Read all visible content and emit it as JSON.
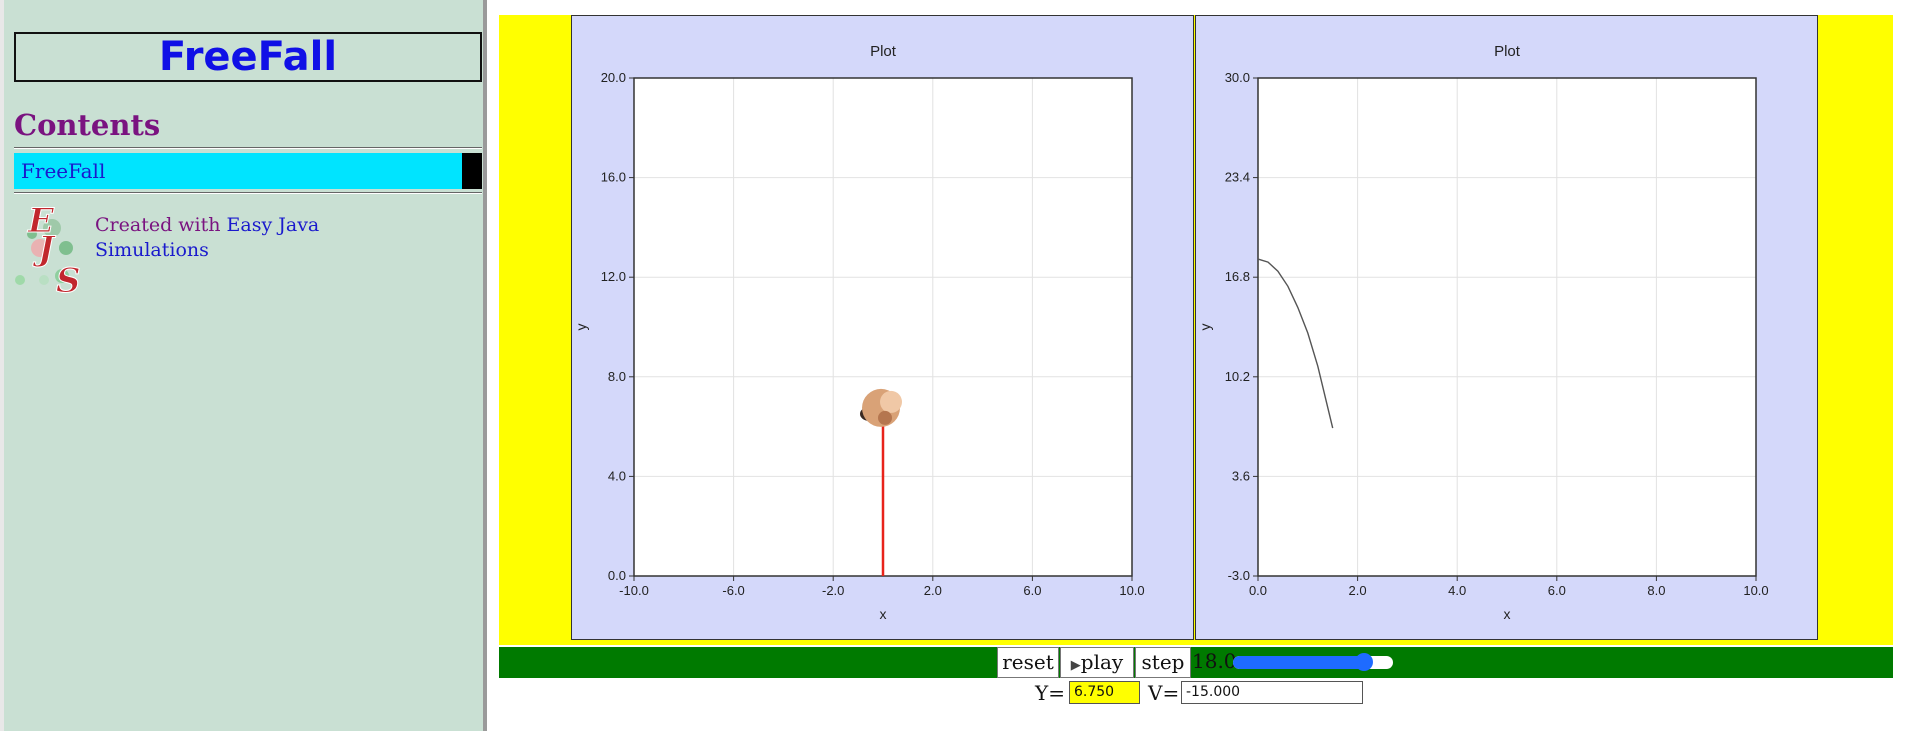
{
  "sidebar": {
    "title": "FreeFall",
    "contents_heading": "Contents",
    "nav_items": [
      {
        "label": "FreeFall"
      }
    ],
    "credit": {
      "prefix": "Created with ",
      "link_text": "Easy Java Simulations"
    },
    "logo_text": "EJS"
  },
  "plots": [
    {
      "title": "Plot",
      "xlabel": "x",
      "ylabel": "y",
      "x_ticks": [
        "-10.0",
        "-6.0",
        "-2.0",
        "2.0",
        "6.0",
        "10.0"
      ],
      "y_ticks": [
        "20.0",
        "16.0",
        "12.0",
        "8.0",
        "4.0",
        "0.0"
      ]
    },
    {
      "title": "Plot",
      "xlabel": "x",
      "ylabel": "y",
      "x_ticks": [
        "0.0",
        "2.0",
        "4.0",
        "6.0",
        "8.0",
        "10.0"
      ],
      "y_ticks": [
        "30.0",
        "23.4",
        "16.8",
        "10.2",
        "3.6",
        "-3.0"
      ]
    }
  ],
  "chart_data": [
    {
      "type": "scatter",
      "title": "Plot",
      "xlabel": "x",
      "ylabel": "y",
      "xlim": [
        -10,
        10
      ],
      "ylim": [
        0,
        20
      ],
      "ball": {
        "x": 0,
        "y": 6.75
      },
      "velocity_arrow": {
        "x": 0,
        "y_from": 0,
        "y_to": 6.75
      }
    },
    {
      "type": "line",
      "title": "Plot",
      "xlabel": "x",
      "ylabel": "y",
      "xlim": [
        0,
        10
      ],
      "ylim": [
        -3,
        30
      ],
      "x": [
        0,
        0.2,
        0.4,
        0.6,
        0.8,
        1.0,
        1.2,
        1.5
      ],
      "y": [
        18.0,
        17.8,
        17.2,
        16.2,
        14.8,
        13.1,
        10.9,
        6.8
      ]
    }
  ],
  "controls": {
    "reset": "reset",
    "play": "play",
    "step": "step",
    "speed": "18.0",
    "slider_fraction": 0.82,
    "y_label": "Y=",
    "y_value": "6.750",
    "v_label": "V=",
    "v_value": "-15.000"
  },
  "colors": {
    "velocity": "#e8231b",
    "trace": "#555555",
    "plot_bg": "#d4d8fa",
    "frame_bg": "#ffff00"
  }
}
